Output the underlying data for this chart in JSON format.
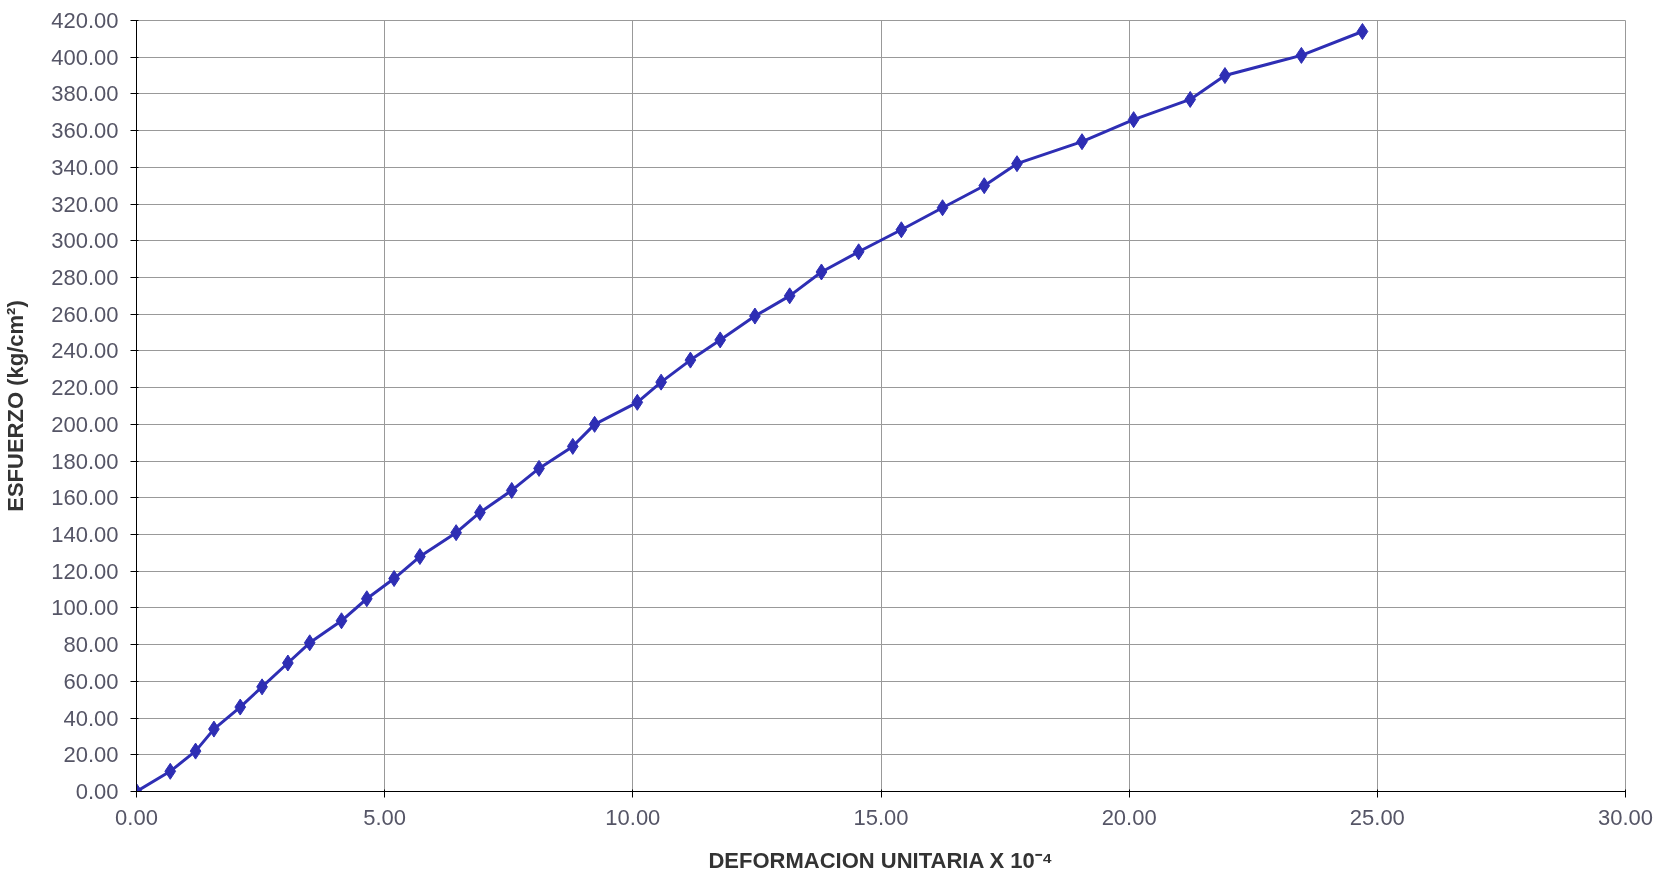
{
  "chart_data": {
    "type": "line",
    "xlabel": "DEFORMACION UNITARIA X 10⁻⁴",
    "ylabel": "ESFUERZO (kg/cm²)",
    "series": [
      {
        "color": "#2e2eb4",
        "x": [
          0,
          0.68,
          1.19,
          1.56,
          2.09,
          2.53,
          3.05,
          3.49,
          4.13,
          4.64,
          5.19,
          5.71,
          6.44,
          6.92,
          7.56,
          8.11,
          8.79,
          9.23,
          10.09,
          10.57,
          11.16,
          11.76,
          12.46,
          13.16,
          13.8,
          14.55,
          15.41,
          16.24,
          17.08,
          17.74,
          19.05,
          20.09,
          21.23,
          21.93,
          23.47,
          24.7
        ],
        "values": [
          0,
          11,
          22,
          34,
          46,
          57,
          70,
          81,
          93,
          105,
          116,
          128,
          141,
          152,
          164,
          176,
          188,
          200,
          212,
          223,
          235,
          246,
          259,
          270,
          283,
          294,
          306,
          318,
          330,
          342,
          354,
          366,
          377,
          390,
          401,
          414
        ]
      }
    ],
    "xlim": [
      0,
      30
    ],
    "ylim": [
      0,
      420
    ],
    "xticks": [
      {
        "value": 0,
        "label": "0.00"
      },
      {
        "value": 5,
        "label": "5.00"
      },
      {
        "value": 10,
        "label": "10.00"
      },
      {
        "value": 15,
        "label": "15.00"
      },
      {
        "value": 20,
        "label": "20.00"
      },
      {
        "value": 25,
        "label": "25.00"
      },
      {
        "value": 30,
        "label": "30.00"
      }
    ],
    "yticks": [
      {
        "value": 0,
        "label": "0.00"
      },
      {
        "value": 20,
        "label": "20.00"
      },
      {
        "value": 40,
        "label": "40.00"
      },
      {
        "value": 60,
        "label": "60.00"
      },
      {
        "value": 80,
        "label": "80.00"
      },
      {
        "value": 100,
        "label": "100.00"
      },
      {
        "value": 120,
        "label": "120.00"
      },
      {
        "value": 140,
        "label": "140.00"
      },
      {
        "value": 160,
        "label": "160.00"
      },
      {
        "value": 180,
        "label": "180.00"
      },
      {
        "value": 200,
        "label": "200.00"
      },
      {
        "value": 220,
        "label": "220.00"
      },
      {
        "value": 240,
        "label": "240.00"
      },
      {
        "value": 260,
        "label": "260.00"
      },
      {
        "value": 280,
        "label": "280.00"
      },
      {
        "value": 300,
        "label": "300.00"
      },
      {
        "value": 320,
        "label": "320.00"
      },
      {
        "value": 340,
        "label": "340.00"
      },
      {
        "value": 360,
        "label": "360.00"
      },
      {
        "value": 380,
        "label": "380.00"
      },
      {
        "value": 400,
        "label": "400.00"
      },
      {
        "value": 420,
        "label": "420.00"
      }
    ],
    "grid": true,
    "marker": "diamond",
    "line_style": "solid"
  }
}
